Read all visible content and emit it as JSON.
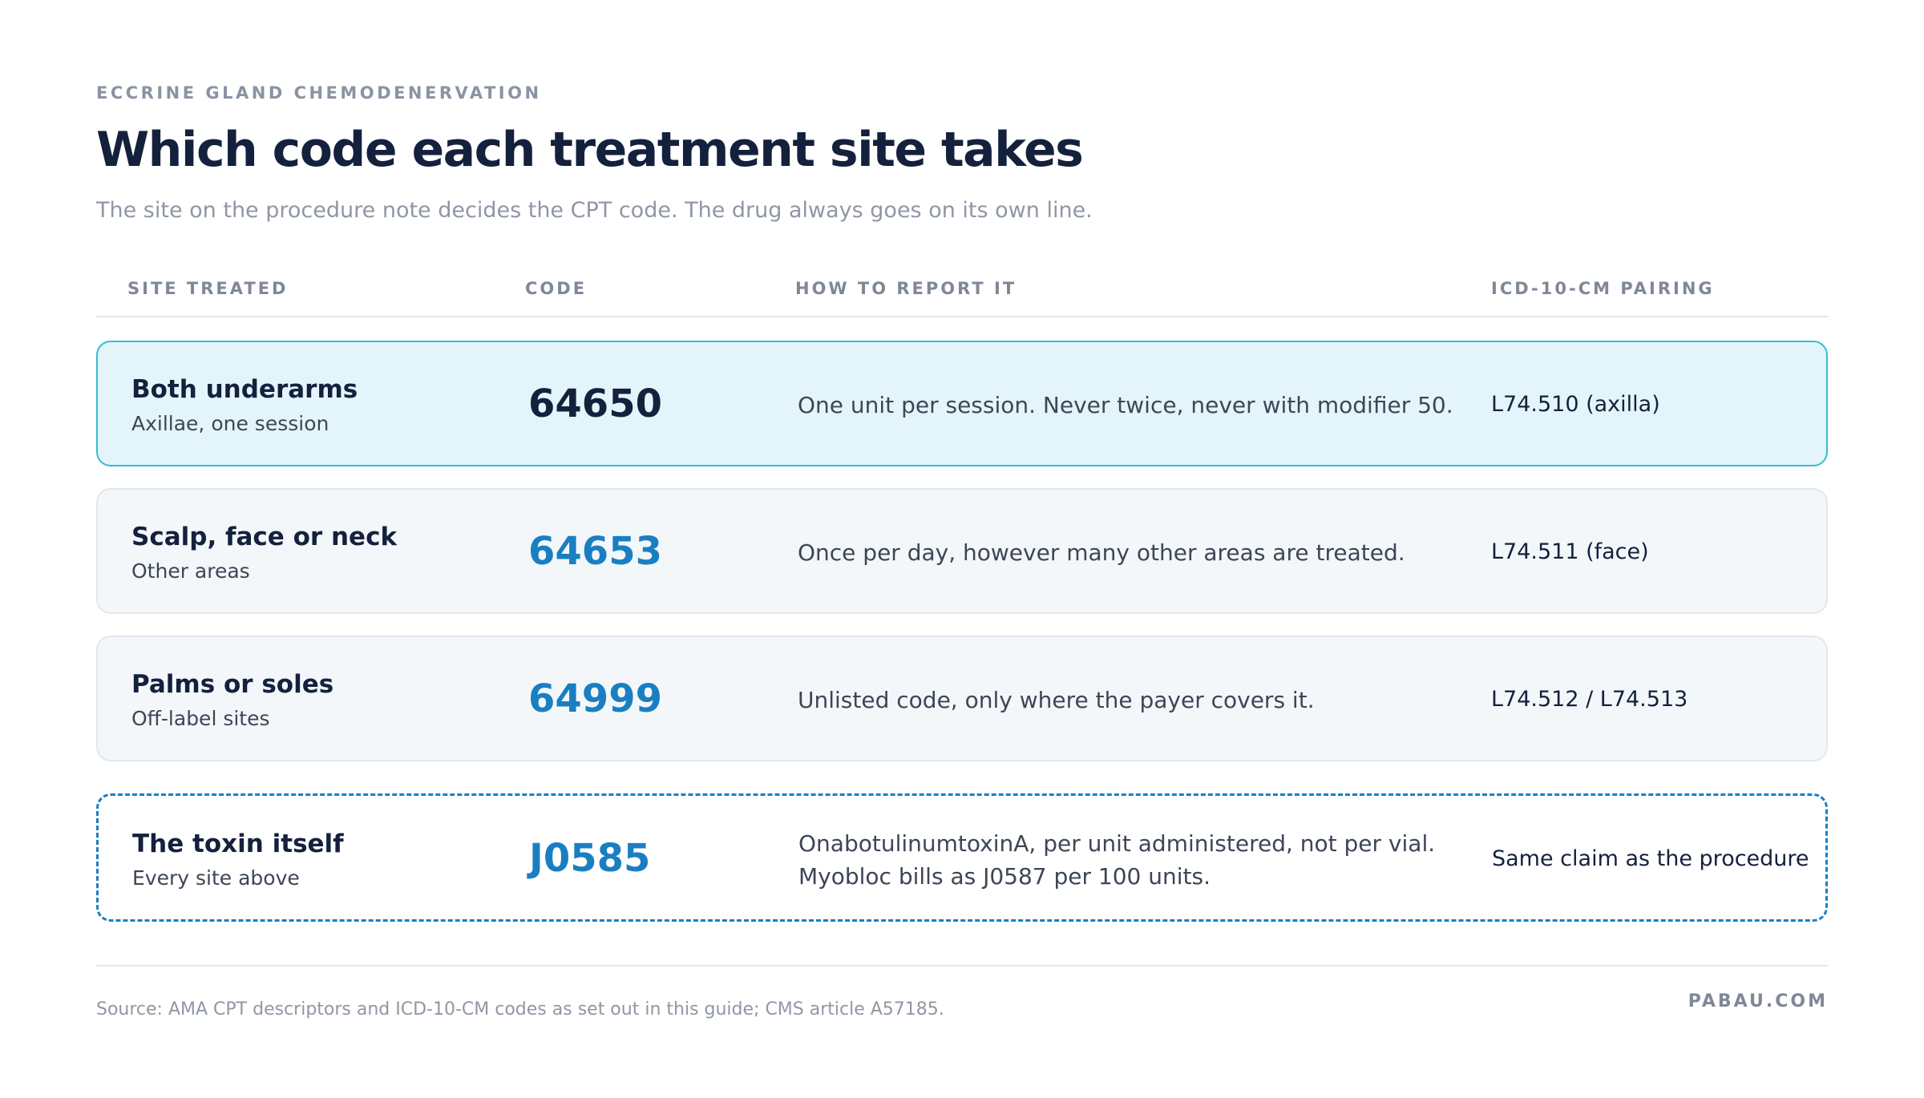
{
  "header": {
    "eyebrow": "ECCRINE GLAND CHEMODENERVATION",
    "title": "Which code each treatment site takes",
    "subtitle": "The site on the procedure note decides the CPT code. The drug always goes on its own line."
  },
  "table": {
    "columns": [
      "SITE TREATED",
      "CODE",
      "HOW TO REPORT IT",
      "ICD-10-CM PAIRING"
    ],
    "rows": [
      {
        "site": "Both underarms",
        "detail": "Axillae, one session",
        "code": "64650",
        "how": [
          "One unit per session. Never twice, never with modifier 50."
        ],
        "icd": "L74.510 (axilla)"
      },
      {
        "site": "Scalp, face or neck",
        "detail": "Other areas",
        "code": "64653",
        "how": [
          "Once per day, however many other areas are treated."
        ],
        "icd": "L74.511 (face)"
      },
      {
        "site": "Palms or soles",
        "detail": "Off-label sites",
        "code": "64999",
        "how": [
          "Unlisted code, only where the payer covers it."
        ],
        "icd": "L74.512 / L74.513"
      },
      {
        "site": "The toxin itself",
        "detail": "Every site above",
        "code": "J0585",
        "how": [
          "OnabotulinumtoxinA, per unit administered, not per vial.",
          "Myobloc bills as J0587 per 100 units."
        ],
        "icd": "Same claim as the procedure"
      }
    ]
  },
  "footer": {
    "source": "Source: AMA CPT descriptors and ICD-10-CM codes as set out in this guide; CMS article A57185.",
    "brand": "PABAU.COM"
  }
}
